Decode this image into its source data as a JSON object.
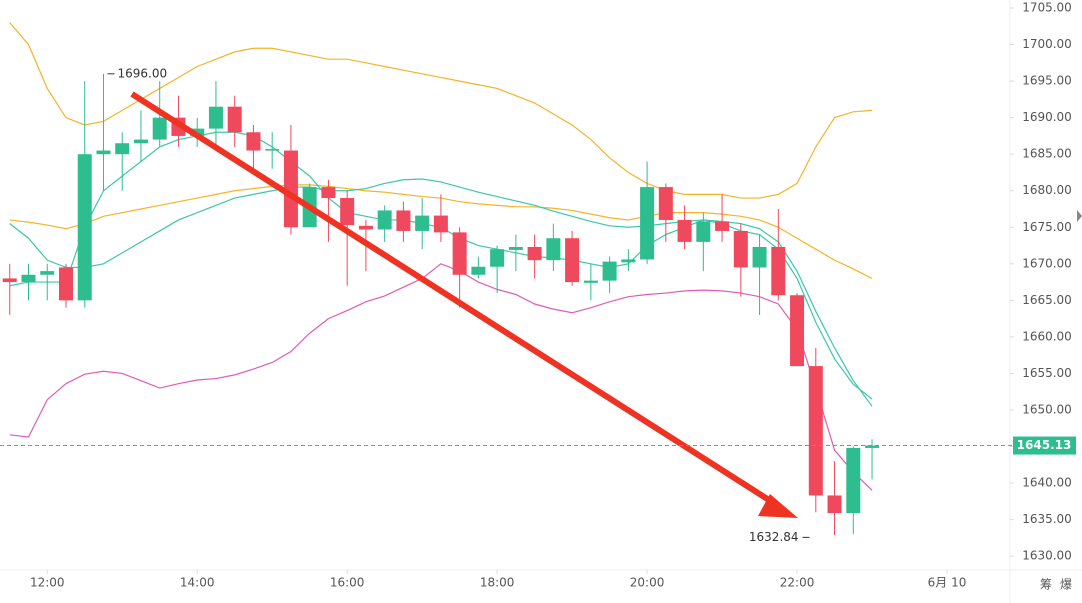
{
  "chart_data": {
    "type": "candlestick",
    "x": [
      11.5,
      11.75,
      12,
      12.25,
      12.5,
      12.75,
      13,
      13.25,
      13.5,
      13.75,
      14,
      14.25,
      14.5,
      14.75,
      15,
      15.25,
      15.5,
      15.75,
      16,
      16.25,
      16.5,
      16.75,
      17,
      17.25,
      17.5,
      17.75,
      18,
      18.25,
      18.5,
      18.75,
      19,
      19.25,
      19.5,
      19.75,
      20,
      20.25,
      20.5,
      20.75,
      21,
      21.25,
      21.5,
      21.75,
      22,
      22.25,
      22.5,
      22.75,
      23
    ],
    "open": [
      1668,
      1667.5,
      1668.5,
      1669.5,
      1665,
      1685,
      1685,
      1686.5,
      1687,
      1690,
      1687.5,
      1688.5,
      1691.5,
      1688,
      1685.5,
      1685.5,
      1675,
      1680.5,
      1679,
      1675.2,
      1674.7,
      1677.3,
      1674.5,
      1676.6,
      1674.3,
      1668.5,
      1669.6,
      1671.9,
      1672.3,
      1670.5,
      1673.5,
      1667.4,
      1667.7,
      1670.2,
      1670.6,
      1680.5,
      1676,
      1673,
      1675.8,
      1674.5,
      1669.5,
      1672.3,
      1665.7,
      1656,
      1638.3,
      1635.9,
      1644.8
    ],
    "high": [
      1670,
      1670,
      1670,
      1670,
      1695,
      1696,
      1688,
      1691,
      1695,
      1693,
      1690,
      1695,
      1693,
      1689,
      1688,
      1689,
      1681,
      1681.5,
      1680,
      1676,
      1678,
      1678.5,
      1679,
      1679.5,
      1675,
      1671,
      1672.5,
      1674,
      1674,
      1675.5,
      1674.5,
      1670,
      1671,
      1672,
      1684,
      1681,
      1678,
      1677,
      1679.5,
      1675.5,
      1674,
      1677.5,
      1666,
      1658.5,
      1643,
      1645,
      1646
    ],
    "low": [
      1663,
      1665,
      1665,
      1664,
      1664,
      1680,
      1680,
      1684,
      1686,
      1686,
      1686,
      1686,
      1686,
      1683,
      1683,
      1674,
      1675,
      1673,
      1667,
      1669,
      1673,
      1673,
      1672,
      1673,
      1664,
      1668,
      1666,
      1669,
      1668,
      1669,
      1667,
      1665,
      1666,
      1669,
      1670,
      1673,
      1672,
      1669,
      1673,
      1665.5,
      1663,
      1665,
      1656,
      1636,
      1632.84,
      1633,
      1640.5
    ],
    "close": [
      1667.5,
      1668.5,
      1669,
      1665,
      1685,
      1685.5,
      1686.5,
      1687,
      1690,
      1687.5,
      1688.5,
      1691.5,
      1688,
      1685.5,
      1685.7,
      1675,
      1680.5,
      1679,
      1675.3,
      1674.7,
      1677.3,
      1674.5,
      1676.6,
      1674.3,
      1668.5,
      1669.6,
      1672,
      1672.3,
      1670.5,
      1673.5,
      1667.5,
      1667.7,
      1670.3,
      1670.6,
      1680.5,
      1676,
      1673,
      1675.8,
      1674.5,
      1669.5,
      1672.3,
      1665.7,
      1656,
      1638.3,
      1635.9,
      1644.8,
      1645.13
    ],
    "up_color": "#2ebd8e",
    "down_color": "#f0485c",
    "series": [
      {
        "color": "#f5b32a",
        "values": [
          1703,
          1700,
          1694,
          1690,
          1689,
          1689.5,
          1691,
          1692.5,
          1694,
          1695.5,
          1697,
          1698,
          1699,
          1699.5,
          1699.5,
          1699,
          1698.5,
          1698,
          1698,
          1697.5,
          1697,
          1696.5,
          1696,
          1695.5,
          1695,
          1694.5,
          1694,
          1693,
          1692,
          1690.5,
          1689,
          1687,
          1684.5,
          1682.5,
          1681,
          1680,
          1679.5,
          1679.5,
          1679.5,
          1679,
          1679,
          1679.5,
          1681,
          1686,
          1690,
          1690.8,
          1691
        ]
      },
      {
        "color": "#f5b32a",
        "values": [
          1676,
          1675.7,
          1675.3,
          1674.8,
          1675.5,
          1676.5,
          1677,
          1677.5,
          1678,
          1678.5,
          1679,
          1679.5,
          1680,
          1680.3,
          1680.6,
          1680.8,
          1680.8,
          1680.6,
          1680.3,
          1680,
          1679.8,
          1679.5,
          1679.2,
          1679,
          1678.5,
          1678.2,
          1678,
          1677.8,
          1677.8,
          1677.6,
          1677.3,
          1676.8,
          1676.3,
          1676,
          1676.5,
          1677,
          1677,
          1677,
          1676.8,
          1676.5,
          1676,
          1675,
          1673.5,
          1672,
          1670.5,
          1669.3,
          1668
        ]
      },
      {
        "color": "#de5cb8",
        "values": [
          1646.6,
          1646.3,
          1651.4,
          1653.6,
          1654.9,
          1655.3,
          1655,
          1654,
          1653,
          1653.6,
          1654.1,
          1654.3,
          1654.8,
          1655.6,
          1656.5,
          1658,
          1660.5,
          1662.5,
          1663.6,
          1664.8,
          1665.6,
          1666.8,
          1668,
          1670,
          1669,
          1667.5,
          1666.5,
          1665.8,
          1664.5,
          1663.8,
          1663.3,
          1664,
          1664.8,
          1665.5,
          1665.8,
          1666,
          1666.3,
          1666.4,
          1666.3,
          1666,
          1665.5,
          1664.5,
          1661,
          1653,
          1644.5,
          1641.5,
          1639
        ]
      },
      {
        "color": "#3cc7a8",
        "values": [
          1667,
          1667.5,
          1667.5,
          1667.5,
          1675,
          1680,
          1682,
          1684,
          1686,
          1687,
          1687.5,
          1688,
          1688,
          1687.5,
          1686,
          1684,
          1682,
          1679,
          1677,
          1676.5,
          1676,
          1676,
          1675.5,
          1675,
          1673.5,
          1672.5,
          1672,
          1671.5,
          1671,
          1670.8,
          1670.5,
          1670,
          1669.5,
          1670,
          1672.5,
          1674,
          1675,
          1676,
          1675.5,
          1674.5,
          1674,
          1672,
          1668,
          1662,
          1657,
          1653.5,
          1651.5
        ]
      },
      {
        "color": "#3cc7a8",
        "values": [
          1675.5,
          1673.5,
          1670.5,
          1669.5,
          1669.5,
          1670,
          1671.5,
          1673,
          1674.5,
          1676,
          1677,
          1678,
          1679,
          1679.5,
          1680,
          1680.5,
          1680.5,
          1680,
          1680,
          1680.3,
          1681,
          1681.5,
          1681.6,
          1681.2,
          1680.5,
          1679.8,
          1679.2,
          1678.6,
          1678,
          1677.2,
          1676.5,
          1675.8,
          1675.2,
          1675,
          1675.2,
          1675.5,
          1675.8,
          1676,
          1675.8,
          1675.5,
          1674.8,
          1673,
          1669,
          1663.5,
          1658.5,
          1654,
          1650.5
        ]
      }
    ],
    "xlim": [
      11.37,
      24.84
    ],
    "ylim": [
      1628.1,
      1706.1
    ],
    "xticks": [
      {
        "value": 12,
        "label": "12:00"
      },
      {
        "value": 14,
        "label": "14:00"
      },
      {
        "value": 16,
        "label": "16:00"
      },
      {
        "value": 18,
        "label": "18:00"
      },
      {
        "value": 20,
        "label": "20:00"
      },
      {
        "value": 22,
        "label": "22:00"
      },
      {
        "value": 24,
        "label": "6月 10"
      }
    ],
    "yticks": [
      {
        "value": 1630,
        "label": "1630.00"
      },
      {
        "value": 1635,
        "label": "1635.00"
      },
      {
        "value": 1640,
        "label": "1640.00"
      },
      {
        "value": 1645,
        "label": "1645.00"
      },
      {
        "value": 1650,
        "label": "1650.00"
      },
      {
        "value": 1655,
        "label": "1655.00"
      },
      {
        "value": 1660,
        "label": "1660.00"
      },
      {
        "value": 1665,
        "label": "1665.00"
      },
      {
        "value": 1670,
        "label": "1670.00"
      },
      {
        "value": 1675,
        "label": "1675.00"
      },
      {
        "value": 1680,
        "label": "1680.00"
      },
      {
        "value": 1685,
        "label": "1685.00"
      },
      {
        "value": 1690,
        "label": "1690.00"
      },
      {
        "value": 1695,
        "label": "1695.00"
      },
      {
        "value": 1700,
        "label": "1700.00"
      },
      {
        "value": 1705,
        "label": "1705.00"
      }
    ],
    "max_label": {
      "value": 1696,
      "label": "1696.00"
    },
    "min_label": {
      "value": 1632.84,
      "label": "1632.84"
    },
    "last_price": {
      "value": 1645.13,
      "label": "1645.13"
    }
  },
  "toolbar": {
    "buttons": [
      "筹",
      "爆"
    ]
  }
}
